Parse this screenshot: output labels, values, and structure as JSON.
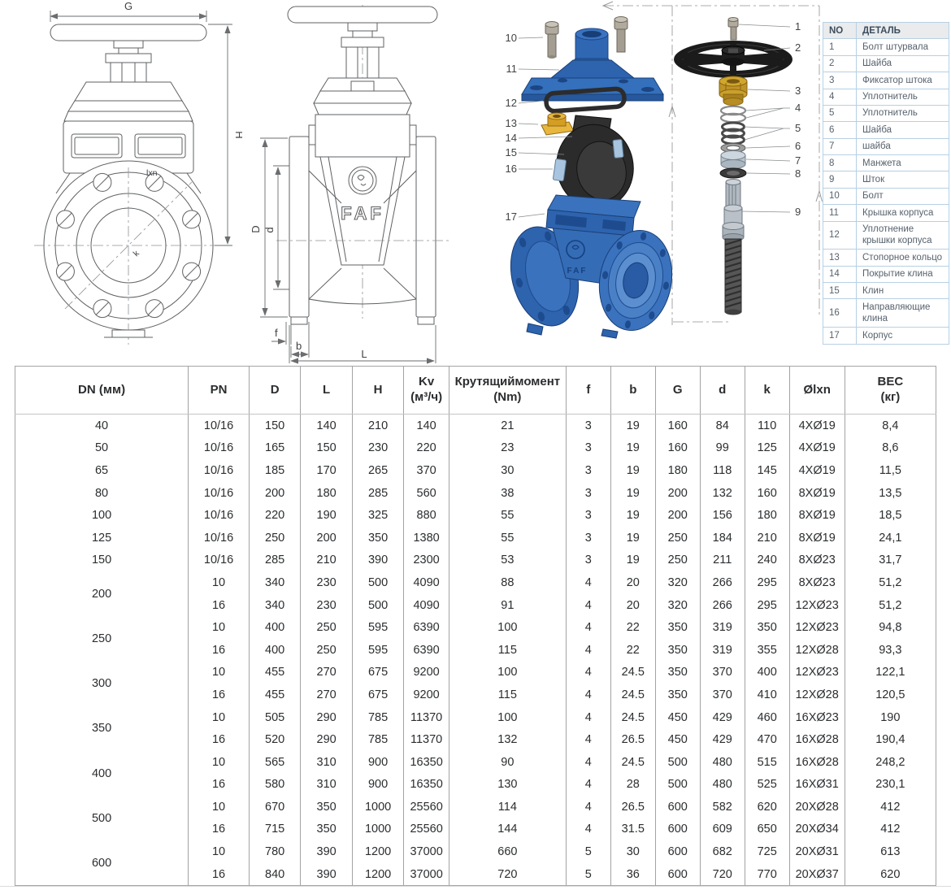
{
  "drawings": {
    "front_view": {
      "dim_g": "G",
      "dim_h": "H",
      "label_lxn": "lxn",
      "label_k": "k"
    },
    "side_view": {
      "dim_d_outer": "D",
      "dim_d_inner": "d",
      "dim_f": "f",
      "dim_b": "b",
      "dim_l": "L",
      "logo": "FAF"
    },
    "exploded": {
      "left_callouts": [
        "10",
        "11",
        "12",
        "13",
        "14",
        "15",
        "16",
        "17"
      ],
      "right_callouts": [
        "1",
        "2",
        "3",
        "4",
        "5",
        "6",
        "7",
        "8",
        "9"
      ],
      "body_logo": "FAF"
    }
  },
  "parts_table": {
    "header_no": "NO",
    "header_detail": "ДЕТАЛЬ",
    "rows": [
      {
        "no": "1",
        "detail": "Болт штурвала"
      },
      {
        "no": "2",
        "detail": "Шайба"
      },
      {
        "no": "3",
        "detail": "Фиксатор штока"
      },
      {
        "no": "4",
        "detail": "Уплотнитель"
      },
      {
        "no": "5",
        "detail": "Уплотнитель"
      },
      {
        "no": "6",
        "detail": "Шайба"
      },
      {
        "no": "7",
        "detail": "шайба"
      },
      {
        "no": "8",
        "detail": "Манжета"
      },
      {
        "no": "9",
        "detail": "Шток"
      },
      {
        "no": "10",
        "detail": "Болт"
      },
      {
        "no": "11",
        "detail": "Крышка корпуса"
      },
      {
        "no": "12",
        "detail": "Уплотнение крышки корпуса"
      },
      {
        "no": "13",
        "detail": "Стопорное кольцо"
      },
      {
        "no": "14",
        "detail": "Покрытие клина"
      },
      {
        "no": "15",
        "detail": "Клин"
      },
      {
        "no": "16",
        "detail": "Направляющие клина"
      },
      {
        "no": "17",
        "detail": "Корпус"
      }
    ]
  },
  "spec_table": {
    "headers": [
      {
        "l1": "DN (мм)"
      },
      {
        "l1": "PN"
      },
      {
        "l1": "D"
      },
      {
        "l1": "L"
      },
      {
        "l1": "H"
      },
      {
        "l1": "Kv",
        "l2": "(м³/ч)"
      },
      {
        "l1": "Крутящиймомент",
        "l2": "(Nm)"
      },
      {
        "l1": "f"
      },
      {
        "l1": "b"
      },
      {
        "l1": "G"
      },
      {
        "l1": "d"
      },
      {
        "l1": "k"
      },
      {
        "l1": "Ølxn"
      },
      {
        "l1": "ВЕС",
        "l2": "(кг)"
      }
    ],
    "groups": [
      {
        "dn": "40",
        "rows": [
          [
            "10/16",
            "150",
            "140",
            "210",
            "140",
            "21",
            "3",
            "19",
            "160",
            "84",
            "110",
            "4XØ19",
            "8,4"
          ]
        ]
      },
      {
        "dn": "50",
        "rows": [
          [
            "10/16",
            "165",
            "150",
            "230",
            "220",
            "23",
            "3",
            "19",
            "160",
            "99",
            "125",
            "4XØ19",
            "8,6"
          ]
        ]
      },
      {
        "dn": "65",
        "rows": [
          [
            "10/16",
            "185",
            "170",
            "265",
            "370",
            "30",
            "3",
            "19",
            "180",
            "118",
            "145",
            "4XØ19",
            "11,5"
          ]
        ]
      },
      {
        "dn": "80",
        "rows": [
          [
            "10/16",
            "200",
            "180",
            "285",
            "560",
            "38",
            "3",
            "19",
            "200",
            "132",
            "160",
            "8XØ19",
            "13,5"
          ]
        ]
      },
      {
        "dn": "100",
        "rows": [
          [
            "10/16",
            "220",
            "190",
            "325",
            "880",
            "55",
            "3",
            "19",
            "200",
            "156",
            "180",
            "8XØ19",
            "18,5"
          ]
        ]
      },
      {
        "dn": "125",
        "rows": [
          [
            "10/16",
            "250",
            "200",
            "350",
            "1380",
            "55",
            "3",
            "19",
            "250",
            "184",
            "210",
            "8XØ19",
            "24,1"
          ]
        ]
      },
      {
        "dn": "150",
        "rows": [
          [
            "10/16",
            "285",
            "210",
            "390",
            "2300",
            "53",
            "3",
            "19",
            "250",
            "211",
            "240",
            "8XØ23",
            "31,7"
          ]
        ]
      },
      {
        "dn": "200",
        "rows": [
          [
            "10",
            "340",
            "230",
            "500",
            "4090",
            "88",
            "4",
            "20",
            "320",
            "266",
            "295",
            "8XØ23",
            "51,2"
          ],
          [
            "16",
            "340",
            "230",
            "500",
            "4090",
            "91",
            "4",
            "20",
            "320",
            "266",
            "295",
            "12XØ23",
            "51,2"
          ]
        ]
      },
      {
        "dn": "250",
        "rows": [
          [
            "10",
            "400",
            "250",
            "595",
            "6390",
            "100",
            "4",
            "22",
            "350",
            "319",
            "350",
            "12XØ23",
            "94,8"
          ],
          [
            "16",
            "400",
            "250",
            "595",
            "6390",
            "115",
            "4",
            "22",
            "350",
            "319",
            "355",
            "12XØ28",
            "93,3"
          ]
        ]
      },
      {
        "dn": "300",
        "rows": [
          [
            "10",
            "455",
            "270",
            "675",
            "9200",
            "100",
            "4",
            "24.5",
            "350",
            "370",
            "400",
            "12XØ23",
            "122,1"
          ],
          [
            "16",
            "455",
            "270",
            "675",
            "9200",
            "115",
            "4",
            "24.5",
            "350",
            "370",
            "410",
            "12XØ28",
            "120,5"
          ]
        ]
      },
      {
        "dn": "350",
        "rows": [
          [
            "10",
            "505",
            "290",
            "785",
            "11370",
            "100",
            "4",
            "24.5",
            "450",
            "429",
            "460",
            "16XØ23",
            "190"
          ],
          [
            "16",
            "520",
            "290",
            "785",
            "11370",
            "132",
            "4",
            "26.5",
            "450",
            "429",
            "470",
            "16XØ28",
            "190,4"
          ]
        ]
      },
      {
        "dn": "400",
        "rows": [
          [
            "10",
            "565",
            "310",
            "900",
            "16350",
            "90",
            "4",
            "24.5",
            "500",
            "480",
            "515",
            "16XØ28",
            "248,2"
          ],
          [
            "16",
            "580",
            "310",
            "900",
            "16350",
            "130",
            "4",
            "28",
            "500",
            "480",
            "525",
            "16XØ31",
            "230,1"
          ]
        ]
      },
      {
        "dn": "500",
        "rows": [
          [
            "10",
            "670",
            "350",
            "1000",
            "25560",
            "114",
            "4",
            "26.5",
            "600",
            "582",
            "620",
            "20XØ28",
            "412"
          ],
          [
            "16",
            "715",
            "350",
            "1000",
            "25560",
            "144",
            "4",
            "31.5",
            "600",
            "609",
            "650",
            "20XØ34",
            "412"
          ]
        ]
      },
      {
        "dn": "600",
        "rows": [
          [
            "10",
            "780",
            "390",
            "1200",
            "37000",
            "660",
            "5",
            "30",
            "600",
            "682",
            "725",
            "20XØ31",
            "613"
          ],
          [
            "16",
            "840",
            "390",
            "1200",
            "37000",
            "720",
            "5",
            "36",
            "600",
            "720",
            "770",
            "20XØ37",
            "620"
          ]
        ]
      }
    ]
  },
  "colors": {
    "valve_blue": "#2f66b2",
    "valve_blue_dark": "#1a4178",
    "brass": "#cda22c",
    "steel_gray": "#b1aa9e",
    "handwheel_black": "#1b1b1b",
    "parts_table_border": "#b7d0e4",
    "parts_table_header_bg": "#e9ebed"
  }
}
